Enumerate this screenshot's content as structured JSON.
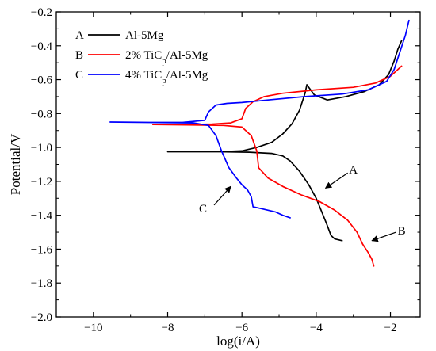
{
  "chart_data": {
    "type": "line",
    "title": "",
    "xlabel": "log(i/A)",
    "ylabel": "Potential/V",
    "xlim": [
      -11,
      -1.2
    ],
    "ylim": [
      -2.0,
      -0.2
    ],
    "x_ticks": [
      -10,
      -8,
      -6,
      -4,
      -2
    ],
    "x_tick_labels": [
      "−10",
      "−8",
      "−6",
      "−4",
      "−2"
    ],
    "y_ticks": [
      -2.0,
      -1.8,
      -1.6,
      -1.4,
      -1.2,
      -1.0,
      -0.8,
      -0.6,
      -0.4,
      -0.2
    ],
    "y_tick_labels": [
      "−2.0",
      "−1.8",
      "−1.6",
      "−1.4",
      "−1.2",
      "−1.0",
      "−0.8",
      "−0.6",
      "−0.4",
      "−0.2"
    ],
    "grid": false,
    "legend_position": "top-left",
    "series": [
      {
        "id": "A",
        "name": "Al-5Mg",
        "color": "#000000",
        "points": [
          [
            -4.25,
            -0.63
          ],
          [
            -4.05,
            -0.69
          ],
          [
            -3.7,
            -0.72
          ],
          [
            -3.2,
            -0.7
          ],
          [
            -2.7,
            -0.67
          ],
          [
            -2.3,
            -0.63
          ],
          [
            -2.05,
            -0.57
          ],
          [
            -1.9,
            -0.49
          ],
          [
            -1.8,
            -0.42
          ],
          [
            -1.7,
            -0.37
          ],
          null,
          [
            -4.25,
            -0.63
          ],
          [
            -4.3,
            -0.68
          ],
          [
            -4.45,
            -0.78
          ],
          [
            -4.65,
            -0.86
          ],
          [
            -4.9,
            -0.92
          ],
          [
            -5.2,
            -0.97
          ],
          [
            -5.6,
            -1.0
          ],
          [
            -6.0,
            -1.02
          ],
          [
            -6.6,
            -1.025
          ],
          [
            -7.3,
            -1.025
          ],
          [
            -8.0,
            -1.025
          ],
          null,
          [
            -8.0,
            -1.025
          ],
          [
            -6.6,
            -1.025
          ],
          [
            -5.8,
            -1.028
          ],
          [
            -5.2,
            -1.035
          ],
          [
            -4.9,
            -1.05
          ],
          [
            -4.7,
            -1.08
          ],
          [
            -4.45,
            -1.14
          ],
          [
            -4.2,
            -1.22
          ],
          [
            -4.0,
            -1.3
          ],
          [
            -3.85,
            -1.38
          ],
          [
            -3.72,
            -1.45
          ],
          [
            -3.6,
            -1.52
          ],
          [
            -3.5,
            -1.54
          ],
          [
            -3.4,
            -1.545
          ],
          [
            -3.3,
            -1.55
          ]
        ]
      },
      {
        "id": "B",
        "name": "2% TiC",
        "name_sub": "p",
        "name_suffix": "/Al-5Mg",
        "color": "#ff0000",
        "points": [
          [
            -6.0,
            -0.83
          ],
          [
            -5.9,
            -0.77
          ],
          [
            -5.7,
            -0.73
          ],
          [
            -5.4,
            -0.7
          ],
          [
            -4.9,
            -0.68
          ],
          [
            -4.0,
            -0.66
          ],
          [
            -3.0,
            -0.645
          ],
          [
            -2.4,
            -0.62
          ],
          [
            -2.0,
            -0.58
          ],
          [
            -1.7,
            -0.52
          ],
          null,
          [
            -8.4,
            -0.865
          ],
          [
            -7.5,
            -0.865
          ],
          [
            -6.8,
            -0.862
          ],
          [
            -6.3,
            -0.855
          ],
          [
            -6.0,
            -0.83
          ],
          null,
          [
            -8.4,
            -0.865
          ],
          [
            -7.5,
            -0.867
          ],
          [
            -6.5,
            -0.87
          ],
          [
            -6.0,
            -0.88
          ],
          [
            -5.75,
            -0.93
          ],
          [
            -5.6,
            -1.02
          ],
          [
            -5.55,
            -1.12
          ],
          [
            -5.3,
            -1.18
          ],
          [
            -4.9,
            -1.23
          ],
          [
            -4.4,
            -1.28
          ],
          [
            -3.9,
            -1.32
          ],
          [
            -3.5,
            -1.37
          ],
          [
            -3.15,
            -1.43
          ],
          [
            -2.9,
            -1.5
          ],
          [
            -2.75,
            -1.57
          ],
          [
            -2.6,
            -1.62
          ],
          [
            -2.5,
            -1.66
          ],
          [
            -2.45,
            -1.7
          ]
        ]
      },
      {
        "id": "C",
        "name": "4% TiC",
        "name_sub": "p",
        "name_suffix": "/Al-5Mg",
        "color": "#0000ff",
        "points": [
          [
            -7.0,
            -0.84
          ],
          [
            -6.9,
            -0.79
          ],
          [
            -6.7,
            -0.75
          ],
          [
            -6.4,
            -0.74
          ],
          [
            -6.0,
            -0.735
          ],
          [
            -5.3,
            -0.72
          ],
          [
            -4.3,
            -0.7
          ],
          [
            -3.3,
            -0.685
          ],
          [
            -2.6,
            -0.66
          ],
          [
            -2.1,
            -0.61
          ],
          [
            -1.9,
            -0.54
          ],
          [
            -1.75,
            -0.44
          ],
          [
            -1.6,
            -0.34
          ],
          [
            -1.5,
            -0.25
          ],
          null,
          [
            -9.55,
            -0.85
          ],
          [
            -8.5,
            -0.852
          ],
          [
            -7.6,
            -0.852
          ],
          [
            -7.0,
            -0.84
          ],
          null,
          [
            -9.55,
            -0.85
          ],
          [
            -8.5,
            -0.852
          ],
          [
            -7.3,
            -0.855
          ],
          [
            -6.9,
            -0.87
          ],
          [
            -6.7,
            -0.93
          ],
          [
            -6.55,
            -1.02
          ],
          [
            -6.35,
            -1.12
          ],
          [
            -6.15,
            -1.18
          ],
          [
            -6.0,
            -1.22
          ],
          [
            -5.85,
            -1.25
          ],
          [
            -5.75,
            -1.29
          ],
          [
            -5.7,
            -1.35
          ],
          [
            -5.5,
            -1.36
          ],
          [
            -5.1,
            -1.38
          ],
          [
            -4.9,
            -1.4
          ],
          [
            -4.7,
            -1.415
          ]
        ]
      }
    ],
    "annotations": [
      {
        "label": "A",
        "text_at": [
          -3.0,
          -1.13
        ],
        "arrow_from": [
          -3.15,
          -1.15
        ],
        "arrow_to": [
          -3.75,
          -1.24
        ]
      },
      {
        "label": "B",
        "text_at": [
          -1.7,
          -1.49
        ],
        "arrow_from": [
          -1.85,
          -1.5
        ],
        "arrow_to": [
          -2.5,
          -1.55
        ]
      },
      {
        "label": "C",
        "text_at": [
          -7.05,
          -1.36
        ],
        "arrow_from": [
          -6.75,
          -1.34
        ],
        "arrow_to": [
          -6.3,
          -1.23
        ]
      }
    ],
    "legend_label": {
      "A": "A",
      "B": "B",
      "C": "C"
    }
  }
}
